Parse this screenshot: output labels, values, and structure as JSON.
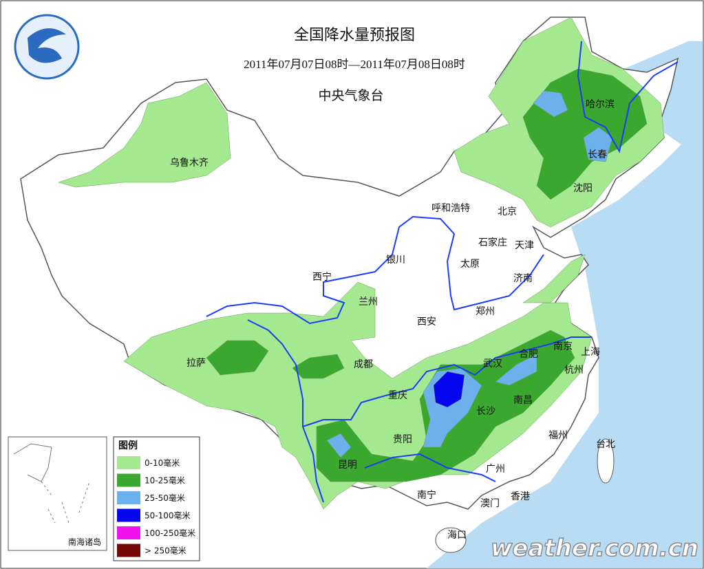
{
  "header": {
    "title": "全国降水量预报图",
    "period": "2011年07月07日08时—2011年07月08日08时",
    "issuer": "中央气象台"
  },
  "cities": [
    {
      "name": "乌鲁木齐"
    },
    {
      "name": "哈尔滨"
    },
    {
      "name": "长春"
    },
    {
      "name": "沈阳"
    },
    {
      "name": "呼和浩特"
    },
    {
      "name": "北京"
    },
    {
      "name": "石家庄"
    },
    {
      "name": "天津"
    },
    {
      "name": "银川"
    },
    {
      "name": "太原"
    },
    {
      "name": "济南"
    },
    {
      "name": "西宁"
    },
    {
      "name": "兰州"
    },
    {
      "name": "郑州"
    },
    {
      "name": "西安"
    },
    {
      "name": "拉萨"
    },
    {
      "name": "成都"
    },
    {
      "name": "武汉"
    },
    {
      "name": "合肥"
    },
    {
      "name": "南京"
    },
    {
      "name": "上海"
    },
    {
      "name": "杭州"
    },
    {
      "name": "重庆"
    },
    {
      "name": "长沙"
    },
    {
      "name": "南昌"
    },
    {
      "name": "贵阳"
    },
    {
      "name": "福州"
    },
    {
      "name": "台北"
    },
    {
      "name": "昆明"
    },
    {
      "name": "广州"
    },
    {
      "name": "南宁"
    },
    {
      "name": "澳门"
    },
    {
      "name": "香港"
    },
    {
      "name": "海口"
    }
  ],
  "legend": {
    "title": "图例",
    "items": [
      {
        "label": "0-10毫米",
        "color": "#a4e890"
      },
      {
        "label": "10-25毫米",
        "color": "#3aa82e"
      },
      {
        "label": "25-50毫米",
        "color": "#6cb0ee"
      },
      {
        "label": "50-100毫米",
        "color": "#0606ee"
      },
      {
        "label": "100-250毫米",
        "color": "#f010f0"
      },
      {
        "label": "> 250毫米",
        "color": "#760808"
      }
    ]
  },
  "inset_label": "南海诸岛",
  "watermark": "weather.com.cn"
}
